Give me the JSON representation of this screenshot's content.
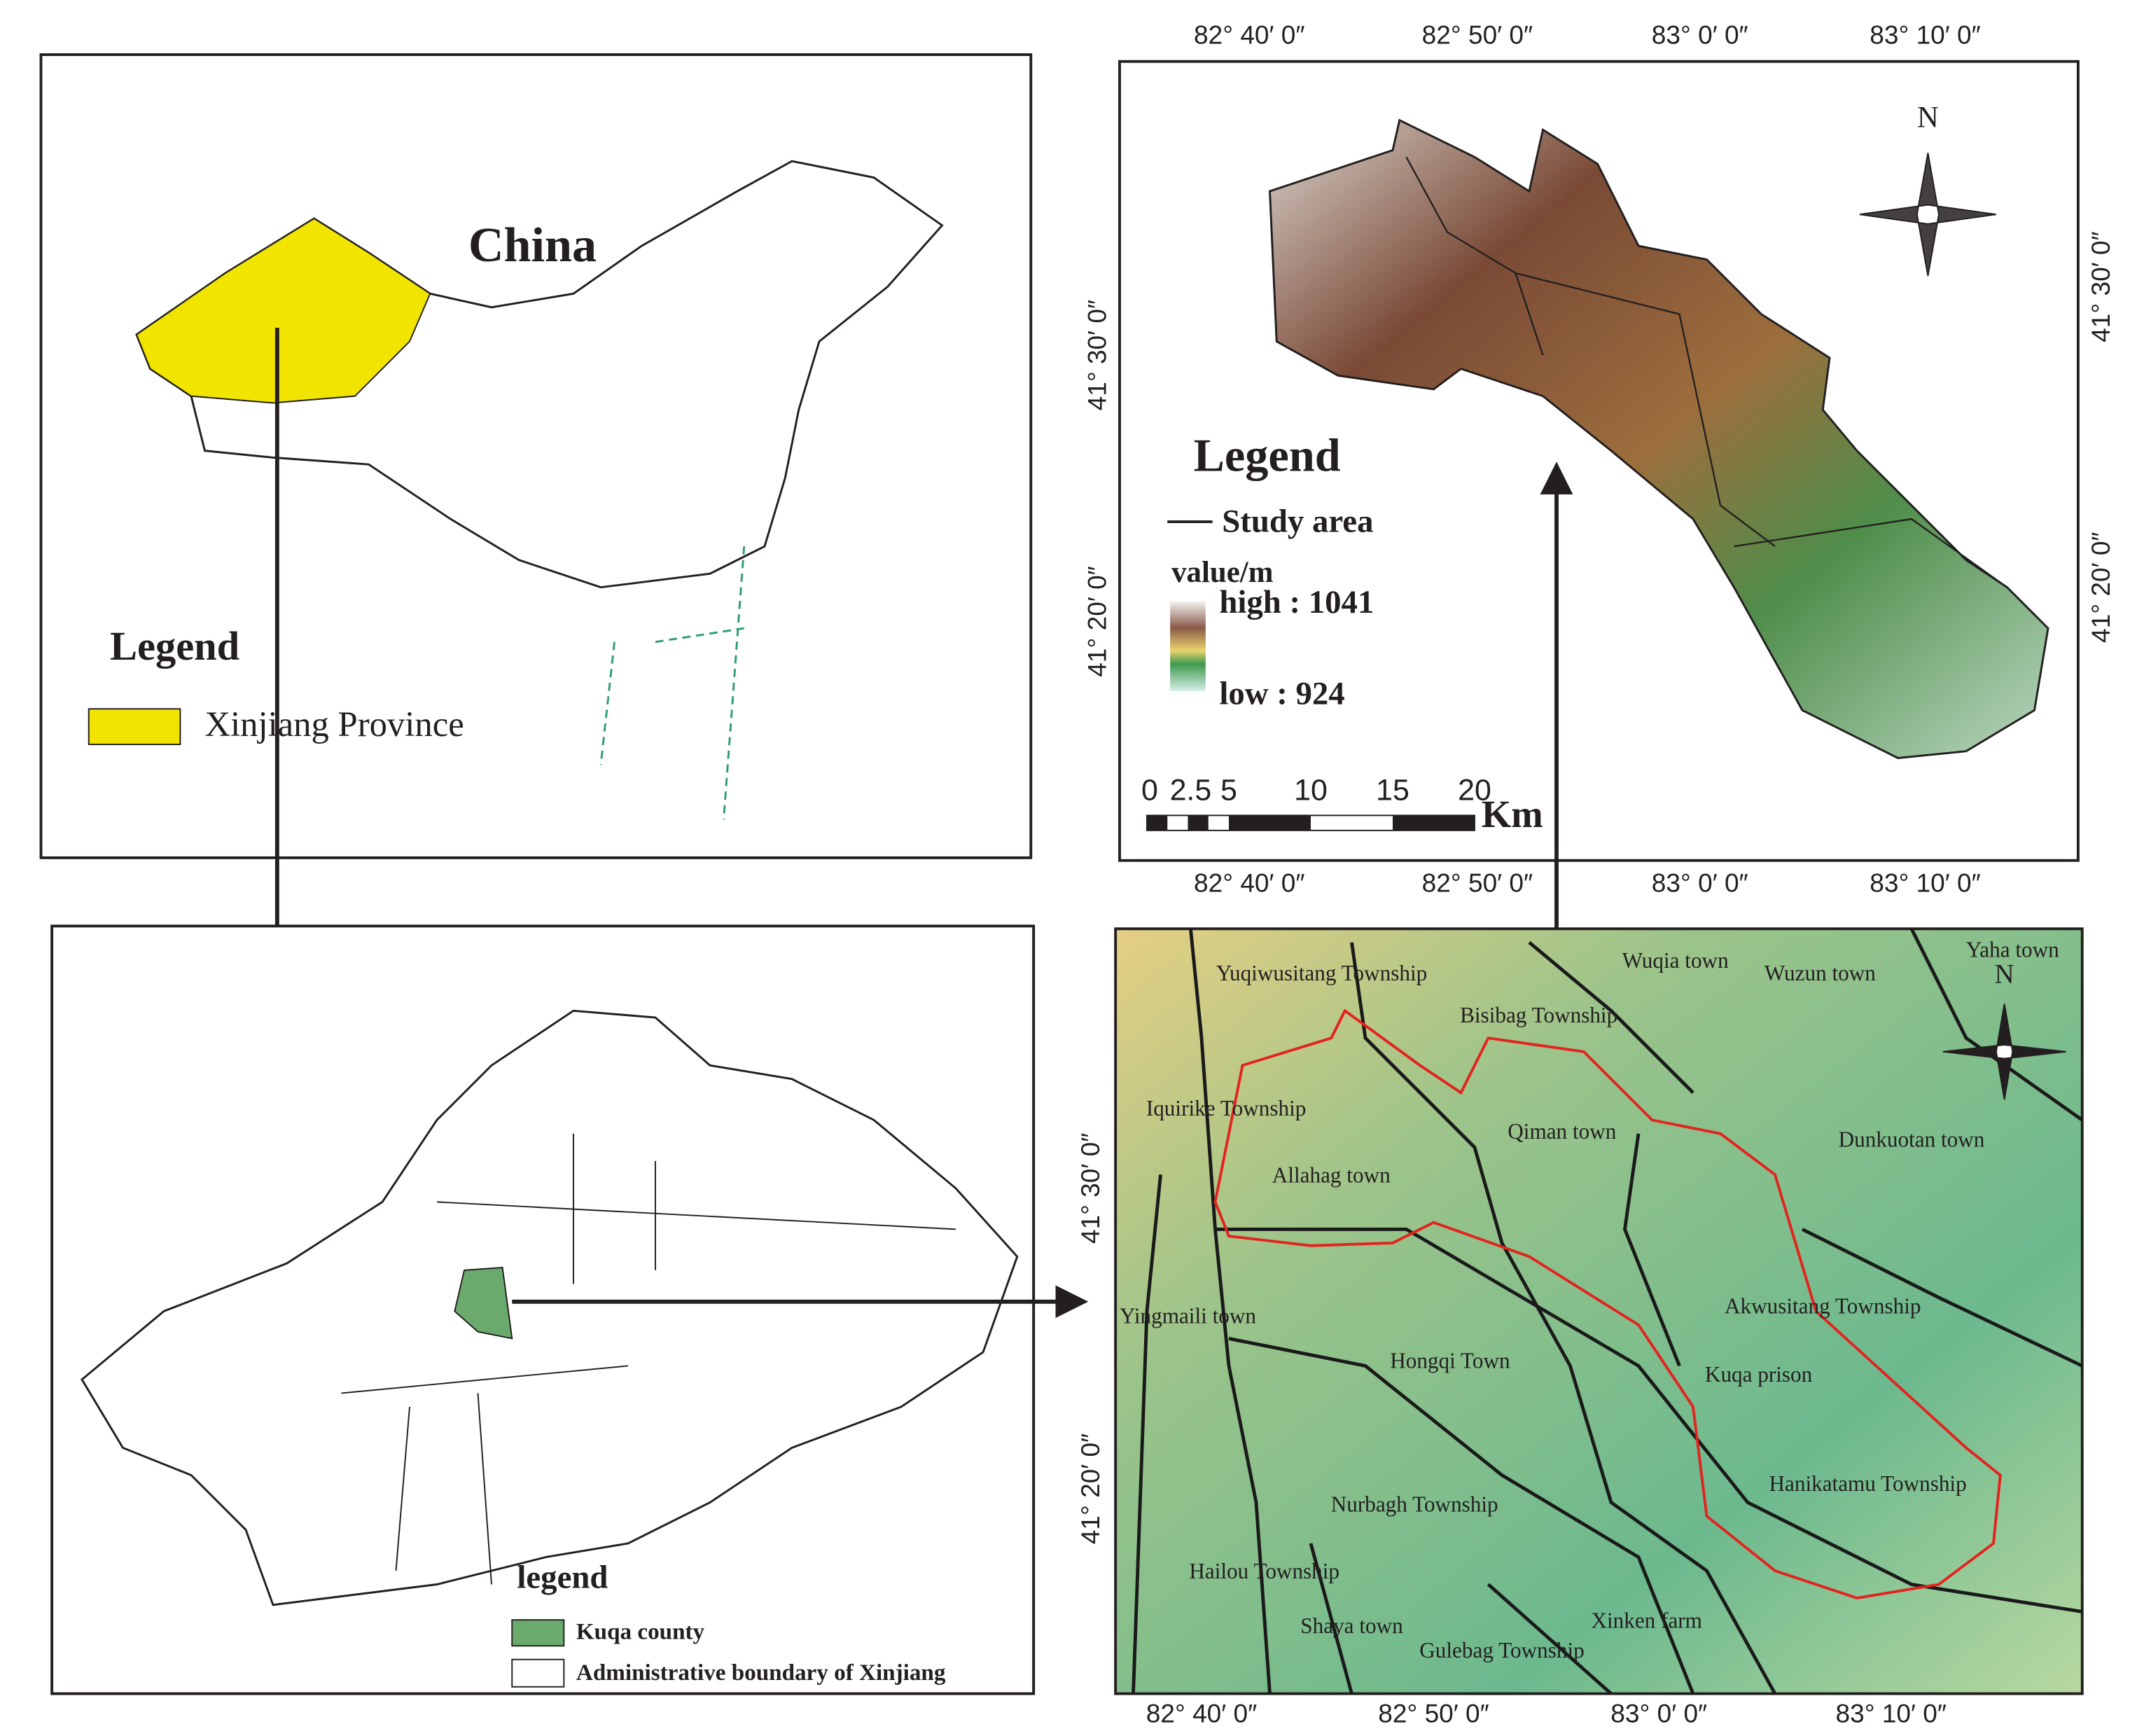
{
  "china_panel": {
    "title": "China",
    "legend_title": "Legend",
    "legend_item": "Xinjiang Province"
  },
  "xinjiang_panel": {
    "legend_title": "legend",
    "legend_items": [
      "Kuqa county",
      "Administrative boundary of Xinjiang"
    ]
  },
  "dem_panel": {
    "top_labels": [
      "82° 40′ 0″",
      "82° 50′ 0″",
      "83° 0′ 0″",
      "83° 10′ 0″"
    ],
    "bottom_labels": [
      "82° 40′ 0″",
      "82° 50′ 0″",
      "83° 0′ 0″",
      "83° 10′ 0″"
    ],
    "left_labels": [
      "41° 30′ 0″",
      "41° 20′ 0″"
    ],
    "right_labels": [
      "41° 30′ 0″",
      "41° 20′ 0″"
    ],
    "north": "N",
    "legend_title": "Legend",
    "study_area": "Study area",
    "unit": "value/m",
    "high": "high : 1041",
    "low": "low : 924",
    "scale_labels": [
      "0",
      "2.5",
      "5",
      "10",
      "15",
      "20"
    ],
    "scale_unit": "Km"
  },
  "township_panel": {
    "bottom_labels": [
      "82° 40′ 0″",
      "82° 50′ 0″",
      "83° 0′ 0″",
      "83° 10′ 0″"
    ],
    "left_labels": [
      "41° 30′ 0″",
      "41° 20′ 0″"
    ],
    "north": "N",
    "places": [
      "Yuqiwusitang Township",
      "Bisibag Township",
      "Wuqia town",
      "Wuzun town",
      "Yaha town",
      "Iquirike Township",
      "Qiman town",
      "Dunkuotan town",
      "Allahag town",
      "Yingmaili town",
      "Akwusitang Township",
      "Hongqi Town",
      "Kuqa prison",
      "Hanikatamu Township",
      "Nurbagh Township",
      "Hailou Township",
      "Xinken farm",
      "Shaya town",
      "Gulebag Township"
    ]
  }
}
